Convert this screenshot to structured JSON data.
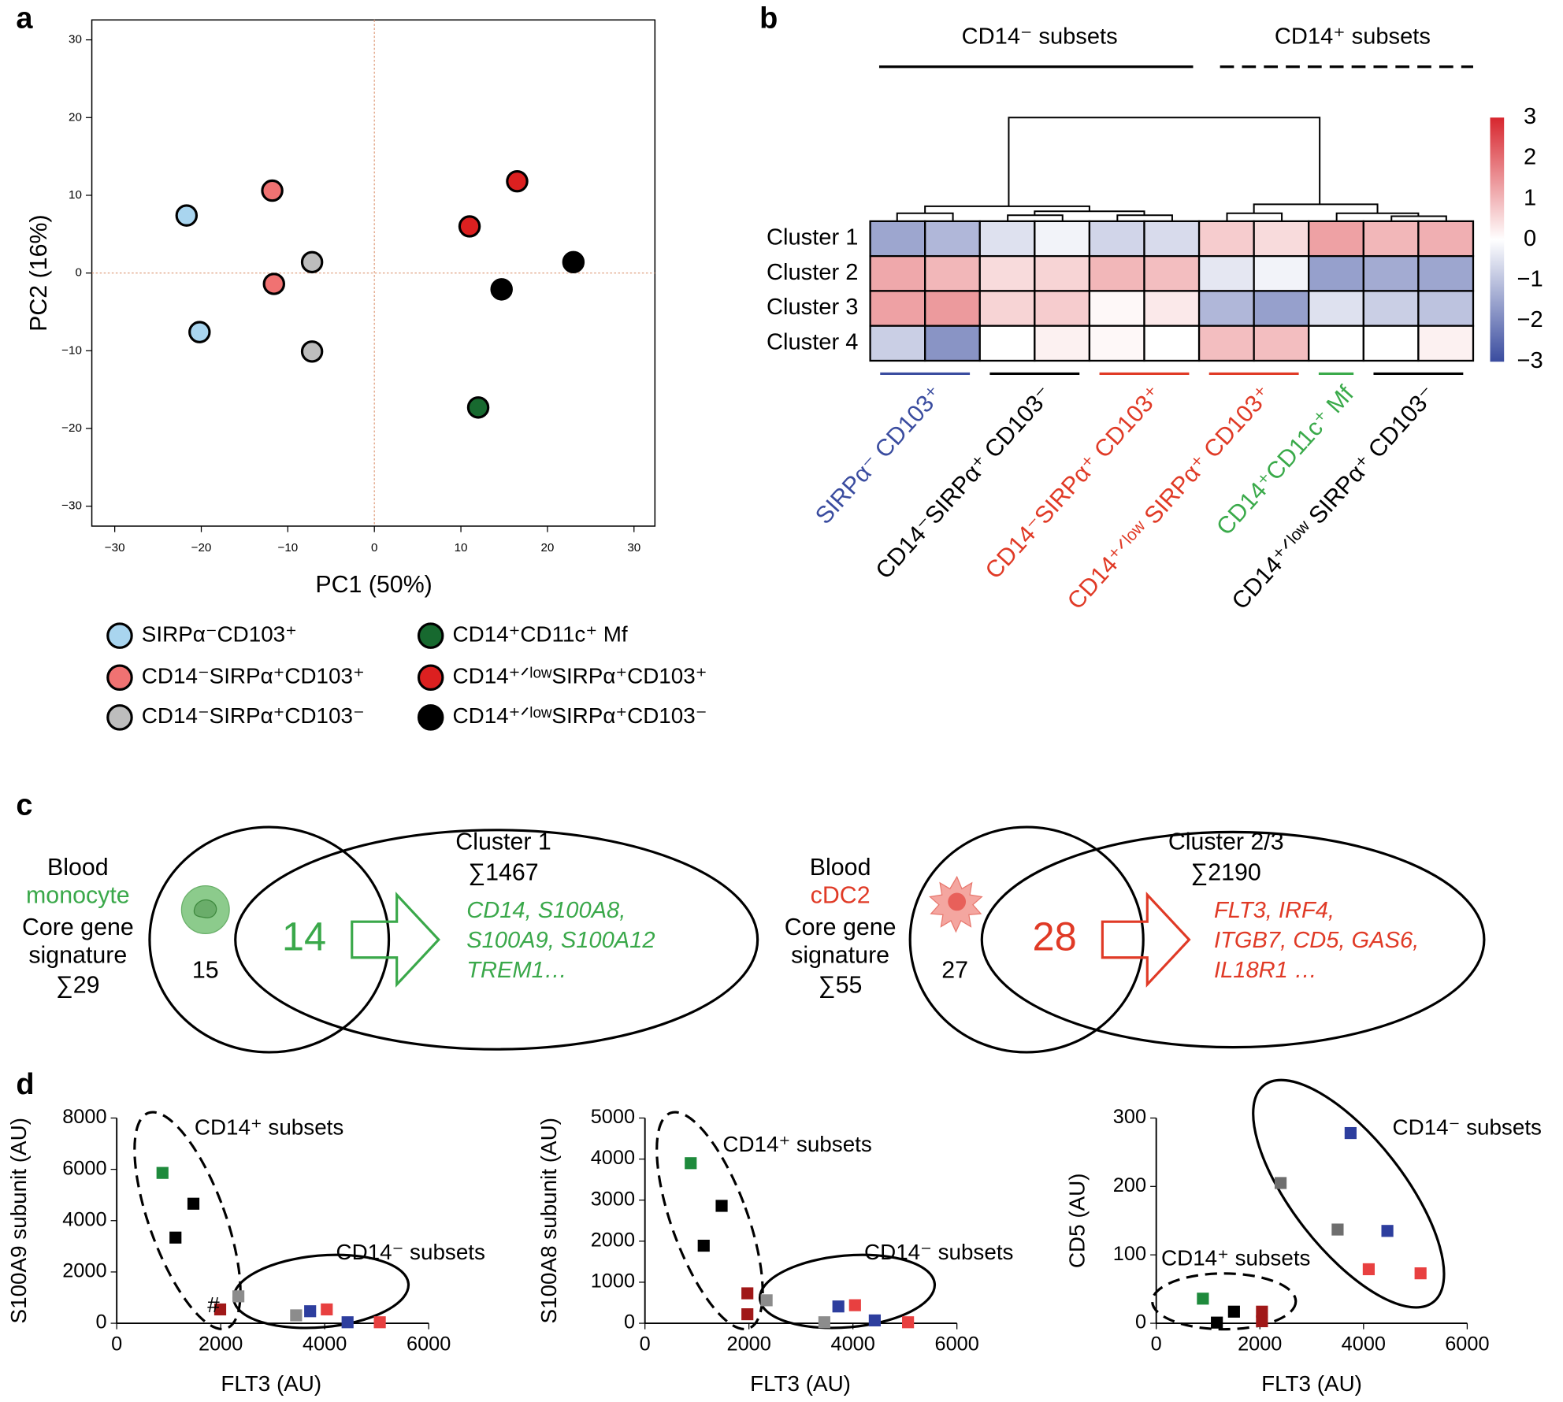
{
  "panel_labels": [
    "a",
    "b",
    "c",
    "d"
  ],
  "chart_data": [
    {
      "type": "scatter",
      "marker": "circle",
      "xlabel": "PC1 (50%)",
      "ylabel": "PC2 (16%)",
      "xlim": [
        -30,
        30
      ],
      "ylim": [
        -30,
        30
      ],
      "xticks": [
        {
          "value": -30,
          "label": "−30"
        },
        {
          "value": -20,
          "label": "−20"
        },
        {
          "value": -10,
          "label": "−10"
        },
        0,
        10,
        20,
        30
      ],
      "yticks": [
        {
          "value": -30,
          "label": "−30"
        },
        {
          "value": -20,
          "label": "−20"
        },
        {
          "value": -10,
          "label": "−10"
        },
        0,
        10,
        20,
        30
      ],
      "series": [
        {
          "name": "SIRPα⁻CD103⁺",
          "color": "#a9d5ef",
          "x": [
            -21.7,
            -20.2
          ],
          "values": [
            7.4,
            -7.6
          ]
        },
        {
          "name": "CD14⁻SIRPα⁺CD103⁺",
          "color": "#f07272",
          "x": [
            -11.8,
            -11.6
          ],
          "values": [
            10.6,
            -1.4
          ]
        },
        {
          "name": "CD14⁻SIRPα⁺CD103⁻",
          "color": "#bdbdbd",
          "x": [
            -7.2,
            -7.2
          ],
          "values": [
            1.4,
            -10.1
          ]
        },
        {
          "name": "CD14⁺CD11c⁺ Mf",
          "color": "#17692f",
          "x": [
            12.0
          ],
          "values": [
            -17.3
          ]
        },
        {
          "name": "CD14⁺ᐟˡᵒʷSIRPα⁺CD103⁺",
          "color": "#dc2020",
          "x": [
            16.5,
            11.0
          ],
          "values": [
            11.8,
            6.0
          ]
        },
        {
          "name": "CD14⁺ᐟˡᵒʷSIRPα⁺CD103⁻",
          "color": "#000000",
          "x": [
            23.0,
            14.7
          ],
          "values": [
            1.4,
            -2.1
          ]
        }
      ]
    },
    {
      "type": "heatmap",
      "rows": [
        "Cluster 1",
        "Cluster 2",
        "Cluster 3",
        "Cluster 4"
      ],
      "values": [
        [
          -1.5,
          -1.2,
          -0.5,
          -0.2,
          -0.7,
          -0.6,
          0.7,
          0.5,
          1.3,
          1.0,
          1.1
        ],
        [
          1.2,
          1.0,
          0.5,
          0.6,
          1.0,
          0.9,
          -0.4,
          -0.2,
          -1.6,
          -1.4,
          -1.5
        ],
        [
          1.3,
          1.4,
          0.6,
          0.7,
          0.1,
          0.3,
          -1.2,
          -1.6,
          -0.5,
          -0.8,
          -1.0
        ],
        [
          -0.8,
          -1.8,
          0,
          0.2,
          0.1,
          0,
          0.9,
          0.9,
          0,
          0,
          0.2
        ]
      ],
      "zlim": [
        -3,
        3
      ],
      "colors": {
        "low": "#3a4c9f",
        "mid": "#ffffff",
        "high": "#d7262e"
      },
      "colorbar_ticks": [
        3,
        2,
        1,
        0,
        {
          "value": -1,
          "label": "−1"
        },
        {
          "value": -2,
          "label": "−2"
        },
        {
          "value": -3,
          "label": "−3"
        }
      ],
      "header_groups": [
        {
          "label": "CD14⁻ subsets"
        },
        {
          "label": "CD14⁺ subsets"
        }
      ],
      "column_groups": [
        {
          "label": "SIRPα⁻ CD103⁺",
          "color": "#3a4c9f",
          "columns": 2
        },
        {
          "label": "CD14⁻SIRPα⁺ CD103⁻",
          "color": "#000000",
          "columns": 2
        },
        {
          "label": "CD14⁻SIRPα⁺ CD103⁺",
          "color": "#e03a26",
          "columns": 2
        },
        {
          "label": "CD14⁺ᐟˡᵒʷ SIRPα⁺ CD103⁺",
          "color": "#e03a26",
          "columns": 2
        },
        {
          "label": "CD14⁺CD11c⁺ Mf",
          "color": "#3aaa4a",
          "columns": 1
        },
        {
          "label": "CD14⁺ᐟˡᵒʷ SIRPα⁺ CD103⁻",
          "color": "#000000",
          "columns": 2
        }
      ]
    },
    {
      "type": "scatter",
      "marker": "square",
      "xlabel": "FLT3 (AU)",
      "ylabel": "S100A9 subunit (AU)",
      "xlim": [
        0,
        6000
      ],
      "ylim": [
        0,
        8000
      ],
      "xticks": [
        0,
        2000,
        4000,
        6000
      ],
      "yticks": [
        0,
        2000,
        4000,
        6000,
        8000
      ],
      "x": [
        880,
        1475,
        1130,
        1990,
        2340,
        3450,
        3720,
        4040,
        4440,
        5060
      ],
      "values": [
        5860,
        4660,
        3340,
        540,
        1050,
        310,
        470,
        540,
        40,
        40
      ],
      "colors": [
        "#1e8a3c",
        "#000000",
        "#000000",
        "#a01818",
        "#8c8c8c",
        "#8c8c8c",
        "#2d3e9e",
        "#e84040",
        "#2d3e9e",
        "#e84040"
      ],
      "annotations": [
        "CD14⁺ subsets",
        "CD14⁻ subsets",
        "#"
      ]
    },
    {
      "type": "scatter",
      "marker": "square",
      "xlabel": "FLT3 (AU)",
      "ylabel": "S100A8 subunit (AU)",
      "xlim": [
        0,
        6000
      ],
      "ylim": [
        0,
        5000
      ],
      "xticks": [
        0,
        2000,
        4000,
        6000
      ],
      "yticks": [
        0,
        1000,
        2000,
        3000,
        4000,
        5000
      ],
      "x": [
        880,
        1475,
        1130,
        1970,
        1970,
        2340,
        3450,
        3720,
        4040,
        4420,
        5060
      ],
      "values": [
        3900,
        2860,
        1890,
        730,
        220,
        560,
        25,
        410,
        440,
        70,
        25
      ],
      "colors": [
        "#1e8a3c",
        "#000000",
        "#000000",
        "#a01818",
        "#a01818",
        "#8c8c8c",
        "#8c8c8c",
        "#2d3e9e",
        "#e84040",
        "#2d3e9e",
        "#e84040"
      ],
      "annotations": [
        "CD14⁺ subsets",
        "CD14⁻ subsets"
      ]
    },
    {
      "type": "scatter",
      "marker": "square",
      "xlabel": "FLT3 (AU)",
      "ylabel": "CD5 (AU)",
      "xlim": [
        0,
        6000
      ],
      "ylim": [
        0,
        300
      ],
      "xticks": [
        0,
        2000,
        4000,
        6000
      ],
      "yticks": [
        0,
        100,
        200,
        300
      ],
      "x": [
        3750,
        2400,
        3500,
        4460,
        4100,
        5100,
        900,
        1500,
        1170,
        2040,
        2040
      ],
      "values": [
        278,
        205,
        137,
        135,
        79,
        73,
        36,
        17,
        1,
        17,
        3
      ],
      "colors": [
        "#2d3e9e",
        "#6e6e6e",
        "#6e6e6e",
        "#2d3e9e",
        "#e84040",
        "#e84040",
        "#1e8a3c",
        "#000000",
        "#000000",
        "#a01818",
        "#a01818"
      ],
      "annotations": [
        "CD14⁻ subsets",
        "CD14⁺ subsets"
      ]
    }
  ],
  "venn": [
    {
      "source": [
        "Blood",
        "monocyte",
        "Core gene",
        "signature",
        "∑29"
      ],
      "only": "15",
      "overlap": "14",
      "cluster": [
        "Cluster 1",
        "∑1467"
      ],
      "genes": [
        "CD14, S100A8,",
        "S100A9, S100A12",
        "TREM1…"
      ]
    },
    {
      "source": [
        "Blood",
        "cDC2",
        "Core gene",
        "signature",
        "∑55"
      ],
      "only": "27",
      "overlap": "28",
      "cluster": [
        "Cluster 2/3",
        "∑2190"
      ],
      "genes": [
        "FLT3, IRF4,",
        "ITGB7, CD5, GAS6,",
        "IL18R1 …"
      ]
    }
  ]
}
